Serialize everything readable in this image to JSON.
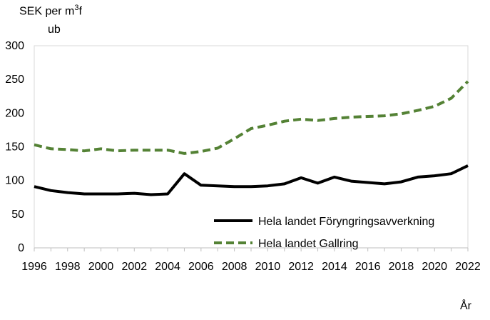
{
  "chart_data": {
    "type": "line",
    "ylabel_lines": [
      "SEK per m",
      "f",
      "ub"
    ],
    "ylabel_superscript": "3",
    "xlabel": "År",
    "ylim": [
      0,
      300
    ],
    "yticks": [
      0,
      50,
      100,
      150,
      200,
      250,
      300
    ],
    "xlim": [
      1996,
      2022
    ],
    "xticks": [
      1996,
      1998,
      2000,
      2002,
      2004,
      2006,
      2008,
      2010,
      2012,
      2014,
      2016,
      2018,
      2020,
      2022
    ],
    "grid": false,
    "legend_position": "lower-right",
    "x": [
      1996,
      1997,
      1998,
      1999,
      2000,
      2001,
      2002,
      2003,
      2004,
      2005,
      2006,
      2007,
      2008,
      2009,
      2010,
      2011,
      2012,
      2013,
      2014,
      2015,
      2016,
      2017,
      2018,
      2019,
      2020,
      2021,
      2022
    ],
    "series": [
      {
        "name": "Hela landet Föryngringsavverkning",
        "color": "#000000",
        "dash": "solid",
        "values": [
          91,
          85,
          82,
          80,
          80,
          80,
          81,
          79,
          80,
          110,
          93,
          92,
          91,
          91,
          92,
          95,
          104,
          96,
          105,
          99,
          97,
          95,
          98,
          105,
          107,
          110,
          122
        ]
      },
      {
        "name": "Hela landet Gallring",
        "color": "#548235",
        "dash": "dashed",
        "values": [
          153,
          147,
          146,
          144,
          147,
          144,
          145,
          145,
          145,
          140,
          143,
          148,
          162,
          177,
          182,
          188,
          191,
          189,
          192,
          194,
          195,
          196,
          199,
          204,
          210,
          222,
          247
        ]
      }
    ]
  }
}
